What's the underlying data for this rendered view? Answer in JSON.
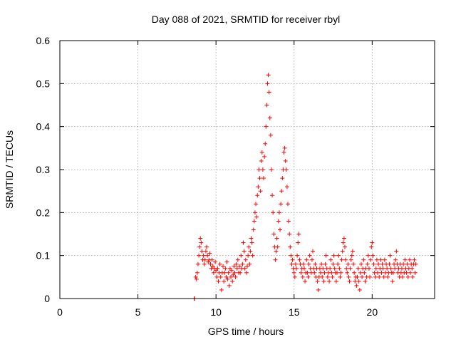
{
  "chart_data": {
    "type": "scatter",
    "title": "Day 088 of 2021, SRMTID for receiver rbyl",
    "xlabel": "GPS time / hours",
    "ylabel": "SRMTID / TECUs",
    "xlim": [
      0,
      24
    ],
    "ylim": [
      0,
      0.6
    ],
    "x_ticks": [
      0,
      5,
      10,
      15,
      20
    ],
    "y_ticks": [
      0,
      0.1,
      0.2,
      0.3,
      0.4,
      0.5,
      0.6
    ],
    "grid": true,
    "marker": "plus",
    "series_color": "#ff0000",
    "series": [
      {
        "name": "SRMTID",
        "points": [
          [
            8.6,
            0.0
          ],
          [
            8.62,
            0.0
          ],
          [
            8.7,
            0.05
          ],
          [
            8.75,
            0.045
          ],
          [
            8.8,
            0.06
          ],
          [
            8.85,
            0.08
          ],
          [
            8.9,
            0.1
          ],
          [
            8.95,
            0.12
          ],
          [
            9.0,
            0.14
          ],
          [
            9.05,
            0.13
          ],
          [
            9.1,
            0.11
          ],
          [
            9.15,
            0.09
          ],
          [
            9.2,
            0.1
          ],
          [
            9.25,
            0.08
          ],
          [
            9.3,
            0.09
          ],
          [
            9.35,
            0.11
          ],
          [
            9.4,
            0.12
          ],
          [
            9.45,
            0.1
          ],
          [
            9.5,
            0.085
          ],
          [
            9.55,
            0.09
          ],
          [
            9.6,
            0.105
          ],
          [
            9.65,
            0.08
          ],
          [
            9.7,
            0.07
          ],
          [
            9.75,
            0.09
          ],
          [
            9.8,
            0.075
          ],
          [
            9.85,
            0.06
          ],
          [
            9.9,
            0.07
          ],
          [
            9.95,
            0.085
          ],
          [
            10.0,
            0.065
          ],
          [
            10.05,
            0.05
          ],
          [
            10.1,
            0.07
          ],
          [
            10.15,
            0.04
          ],
          [
            10.2,
            0.06
          ],
          [
            10.25,
            0.08
          ],
          [
            10.3,
            0.05
          ],
          [
            10.35,
            0.02
          ],
          [
            10.4,
            0.06
          ],
          [
            10.45,
            0.075
          ],
          [
            10.5,
            0.04
          ],
          [
            10.55,
            0.06
          ],
          [
            10.6,
            0.07
          ],
          [
            10.65,
            0.05
          ],
          [
            10.7,
            0.085
          ],
          [
            10.75,
            0.045
          ],
          [
            10.8,
            0.06
          ],
          [
            10.85,
            0.03
          ],
          [
            10.9,
            0.07
          ],
          [
            10.95,
            0.05
          ],
          [
            11.0,
            0.065
          ],
          [
            11.05,
            0.04
          ],
          [
            11.1,
            0.055
          ],
          [
            11.15,
            0.075
          ],
          [
            11.2,
            0.06
          ],
          [
            11.25,
            0.05
          ],
          [
            11.3,
            0.08
          ],
          [
            11.35,
            0.07
          ],
          [
            11.4,
            0.09
          ],
          [
            11.45,
            0.06
          ],
          [
            11.5,
            0.075
          ],
          [
            11.55,
            0.06
          ],
          [
            11.6,
            0.1
          ],
          [
            11.65,
            0.07
          ],
          [
            11.7,
            0.08
          ],
          [
            11.75,
            0.13
          ],
          [
            11.8,
            0.11
          ],
          [
            11.85,
            0.07
          ],
          [
            11.9,
            0.09
          ],
          [
            11.95,
            0.06
          ],
          [
            12.0,
            0.075
          ],
          [
            12.05,
            0.1
          ],
          [
            12.1,
            0.12
          ],
          [
            12.15,
            0.08
          ],
          [
            12.2,
            0.11
          ],
          [
            12.25,
            0.14
          ],
          [
            12.3,
            0.13
          ],
          [
            12.35,
            0.1
          ],
          [
            12.4,
            0.16
          ],
          [
            12.45,
            0.18
          ],
          [
            12.5,
            0.2
          ],
          [
            12.55,
            0.22
          ],
          [
            12.6,
            0.19
          ],
          [
            12.65,
            0.24
          ],
          [
            12.7,
            0.26
          ],
          [
            12.75,
            0.3
          ],
          [
            12.8,
            0.28
          ],
          [
            12.85,
            0.25
          ],
          [
            12.9,
            0.32
          ],
          [
            12.95,
            0.34
          ],
          [
            13.0,
            0.3
          ],
          [
            13.05,
            0.28
          ],
          [
            13.1,
            0.33
          ],
          [
            13.15,
            0.36
          ],
          [
            13.2,
            0.4
          ],
          [
            13.25,
            0.45
          ],
          [
            13.3,
            0.5
          ],
          [
            13.35,
            0.52
          ],
          [
            13.4,
            0.48
          ],
          [
            13.45,
            0.42
          ],
          [
            13.5,
            0.38
          ],
          [
            13.55,
            0.3
          ],
          [
            13.6,
            0.24
          ],
          [
            13.65,
            0.2
          ],
          [
            13.7,
            0.15
          ],
          [
            13.75,
            0.12
          ],
          [
            13.8,
            0.09
          ],
          [
            13.85,
            0.11
          ],
          [
            13.9,
            0.14
          ],
          [
            13.95,
            0.12
          ],
          [
            14.0,
            0.18
          ],
          [
            14.05,
            0.2
          ],
          [
            14.1,
            0.16
          ],
          [
            14.15,
            0.22
          ],
          [
            14.2,
            0.25
          ],
          [
            14.25,
            0.28
          ],
          [
            14.3,
            0.3
          ],
          [
            14.35,
            0.34
          ],
          [
            14.4,
            0.35
          ],
          [
            14.45,
            0.32
          ],
          [
            14.5,
            0.3
          ],
          [
            14.55,
            0.26
          ],
          [
            14.6,
            0.22
          ],
          [
            14.65,
            0.18
          ],
          [
            14.7,
            0.15
          ],
          [
            14.75,
            0.12
          ],
          [
            14.8,
            0.1
          ],
          [
            14.85,
            0.08
          ],
          [
            14.9,
            0.09
          ],
          [
            14.95,
            0.07
          ],
          [
            15.0,
            0.06
          ],
          [
            15.05,
            0.05
          ],
          [
            15.1,
            0.08
          ],
          [
            15.15,
            0.07
          ],
          [
            15.2,
            0.1
          ],
          [
            15.25,
            0.13
          ],
          [
            15.3,
            0.15
          ],
          [
            15.35,
            0.09
          ],
          [
            15.4,
            0.08
          ],
          [
            15.45,
            0.06
          ],
          [
            15.5,
            0.07
          ],
          [
            15.55,
            0.05
          ],
          [
            15.6,
            0.08
          ],
          [
            15.65,
            0.07
          ],
          [
            15.7,
            0.04
          ],
          [
            15.75,
            0.06
          ],
          [
            15.8,
            0.09
          ],
          [
            15.85,
            0.06
          ],
          [
            15.9,
            0.05
          ],
          [
            15.95,
            0.08
          ],
          [
            16.0,
            0.1
          ],
          [
            16.05,
            0.07
          ],
          [
            16.1,
            0.06
          ],
          [
            16.15,
            0.09
          ],
          [
            16.2,
            0.11
          ],
          [
            16.25,
            0.07
          ],
          [
            16.3,
            0.06
          ],
          [
            16.35,
            0.08
          ],
          [
            16.4,
            0.05
          ],
          [
            16.45,
            0.07
          ],
          [
            16.5,
            0.04
          ],
          [
            16.55,
            0.02
          ],
          [
            16.6,
            0.05
          ],
          [
            16.65,
            0.07
          ],
          [
            16.7,
            0.06
          ],
          [
            16.75,
            0.08
          ],
          [
            16.8,
            0.05
          ],
          [
            16.85,
            0.07
          ],
          [
            16.9,
            0.04
          ],
          [
            16.95,
            0.06
          ],
          [
            17.0,
            0.08
          ],
          [
            17.05,
            0.1
          ],
          [
            17.1,
            0.07
          ],
          [
            17.15,
            0.05
          ],
          [
            17.2,
            0.06
          ],
          [
            17.25,
            0.04
          ],
          [
            17.3,
            0.07
          ],
          [
            17.35,
            0.09
          ],
          [
            17.4,
            0.06
          ],
          [
            17.45,
            0.05
          ],
          [
            17.5,
            0.08
          ],
          [
            17.55,
            0.1
          ],
          [
            17.6,
            0.07
          ],
          [
            17.65,
            0.06
          ],
          [
            17.7,
            0.04
          ],
          [
            17.75,
            0.06
          ],
          [
            17.8,
            0.08
          ],
          [
            17.85,
            0.1
          ],
          [
            17.9,
            0.07
          ],
          [
            17.95,
            0.05
          ],
          [
            18.0,
            0.06
          ],
          [
            18.05,
            0.09
          ],
          [
            18.1,
            0.11
          ],
          [
            18.15,
            0.13
          ],
          [
            18.2,
            0.14
          ],
          [
            18.25,
            0.12
          ],
          [
            18.3,
            0.09
          ],
          [
            18.35,
            0.07
          ],
          [
            18.4,
            0.06
          ],
          [
            18.45,
            0.08
          ],
          [
            18.5,
            0.05
          ],
          [
            18.55,
            0.04
          ],
          [
            18.6,
            0.07
          ],
          [
            18.65,
            0.09
          ],
          [
            18.7,
            0.1
          ],
          [
            18.75,
            0.11
          ],
          [
            18.8,
            0.08
          ],
          [
            18.85,
            0.06
          ],
          [
            18.9,
            0.04
          ],
          [
            18.95,
            0.05
          ],
          [
            19.0,
            0.03
          ],
          [
            19.05,
            0.05
          ],
          [
            19.1,
            0.07
          ],
          [
            19.15,
            0.04
          ],
          [
            19.2,
            0.02
          ],
          [
            19.25,
            0.06
          ],
          [
            19.3,
            0.08
          ],
          [
            19.35,
            0.05
          ],
          [
            19.4,
            0.07
          ],
          [
            19.45,
            0.09
          ],
          [
            19.5,
            0.06
          ],
          [
            19.55,
            0.04
          ],
          [
            19.6,
            0.07
          ],
          [
            19.65,
            0.05
          ],
          [
            19.7,
            0.08
          ],
          [
            19.75,
            0.1
          ],
          [
            19.8,
            0.07
          ],
          [
            19.85,
            0.05
          ],
          [
            19.9,
            0.09
          ],
          [
            19.95,
            0.12
          ],
          [
            20.0,
            0.13
          ],
          [
            20.05,
            0.1
          ],
          [
            20.1,
            0.08
          ],
          [
            20.15,
            0.06
          ],
          [
            20.2,
            0.05
          ],
          [
            20.25,
            0.07
          ],
          [
            20.3,
            0.09
          ],
          [
            20.35,
            0.06
          ],
          [
            20.4,
            0.08
          ],
          [
            20.45,
            0.05
          ],
          [
            20.5,
            0.07
          ],
          [
            20.55,
            0.09
          ],
          [
            20.6,
            0.06
          ],
          [
            20.65,
            0.08
          ],
          [
            20.7,
            0.07
          ],
          [
            20.75,
            0.05
          ],
          [
            20.8,
            0.09
          ],
          [
            20.85,
            0.06
          ],
          [
            20.9,
            0.08
          ],
          [
            20.95,
            0.07
          ],
          [
            21.0,
            0.05
          ],
          [
            21.05,
            0.06
          ],
          [
            21.1,
            0.08
          ],
          [
            21.15,
            0.1
          ],
          [
            21.2,
            0.07
          ],
          [
            21.25,
            0.06
          ],
          [
            21.3,
            0.04
          ],
          [
            21.35,
            0.06
          ],
          [
            21.4,
            0.08
          ],
          [
            21.45,
            0.07
          ],
          [
            21.5,
            0.09
          ],
          [
            21.55,
            0.11
          ],
          [
            21.6,
            0.08
          ],
          [
            21.65,
            0.06
          ],
          [
            21.7,
            0.07
          ],
          [
            21.75,
            0.05
          ],
          [
            21.8,
            0.08
          ],
          [
            21.85,
            0.06
          ],
          [
            21.9,
            0.07
          ],
          [
            21.95,
            0.05
          ],
          [
            22.0,
            0.08
          ],
          [
            22.05,
            0.06
          ],
          [
            22.1,
            0.09
          ],
          [
            22.15,
            0.07
          ],
          [
            22.2,
            0.06
          ],
          [
            22.25,
            0.08
          ],
          [
            22.3,
            0.05
          ],
          [
            22.35,
            0.07
          ],
          [
            22.4,
            0.09
          ],
          [
            22.45,
            0.06
          ],
          [
            22.5,
            0.08
          ],
          [
            22.55,
            0.07
          ],
          [
            22.6,
            0.05
          ],
          [
            22.65,
            0.08
          ],
          [
            22.7,
            0.09
          ],
          [
            22.75,
            0.06
          ],
          [
            22.8,
            0.08
          ]
        ]
      }
    ]
  }
}
